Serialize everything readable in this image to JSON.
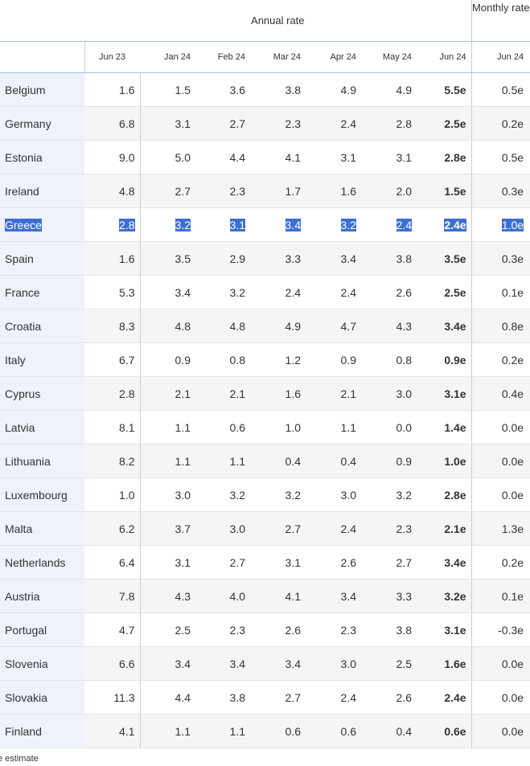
{
  "table": {
    "group_headers": [
      "Annual rate",
      "Monthly rate"
    ],
    "columns": [
      "Jun 23",
      "Jan 24",
      "Feb 24",
      "Mar 24",
      "Apr 24",
      "May 24",
      "Jun 24",
      "Jun 24"
    ],
    "rows": [
      [
        "Belgium",
        "1.6",
        "1.5",
        "3.6",
        "3.8",
        "4.9",
        "4.9",
        "5.5e",
        "0.5e"
      ],
      [
        "Germany",
        "6.8",
        "3.1",
        "2.7",
        "2.3",
        "2.4",
        "2.8",
        "2.5e",
        "0.2e"
      ],
      [
        "Estonia",
        "9.0",
        "5.0",
        "4.4",
        "4.1",
        "3.1",
        "3.1",
        "2.8e",
        "0.5e"
      ],
      [
        "Ireland",
        "4.8",
        "2.7",
        "2.3",
        "1.7",
        "1.6",
        "2.0",
        "1.5e",
        "0.3e"
      ],
      [
        "Greece",
        "2.8",
        "3.2",
        "3.1",
        "3.4",
        "3.2",
        "2.4",
        "2.4e",
        "1.0e"
      ],
      [
        "Spain",
        "1.6",
        "3.5",
        "2.9",
        "3.3",
        "3.4",
        "3.8",
        "3.5e",
        "0.3e"
      ],
      [
        "France",
        "5.3",
        "3.4",
        "3.2",
        "2.4",
        "2.4",
        "2.6",
        "2.5e",
        "0.1e"
      ],
      [
        "Croatia",
        "8.3",
        "4.8",
        "4.8",
        "4.9",
        "4.7",
        "4.3",
        "3.4e",
        "0.8e"
      ],
      [
        "Italy",
        "6.7",
        "0.9",
        "0.8",
        "1.2",
        "0.9",
        "0.8",
        "0.9e",
        "0.2e"
      ],
      [
        "Cyprus",
        "2.8",
        "2.1",
        "2.1",
        "1.6",
        "2.1",
        "3.0",
        "3.1e",
        "0.4e"
      ],
      [
        "Latvia",
        "8.1",
        "1.1",
        "0.6",
        "1.0",
        "1.1",
        "0.0",
        "1.4e",
        "0.0e"
      ],
      [
        "Lithuania",
        "8.2",
        "1.1",
        "1.1",
        "0.4",
        "0.4",
        "0.9",
        "1.0e",
        "0.0e"
      ],
      [
        "Luxembourg",
        "1.0",
        "3.0",
        "3.2",
        "3.2",
        "3.0",
        "3.2",
        "2.8e",
        "0.0e"
      ],
      [
        "Malta",
        "6.2",
        "3.7",
        "3.0",
        "2.7",
        "2.4",
        "2.3",
        "2.1e",
        "1.3e"
      ],
      [
        "Netherlands",
        "6.4",
        "3.1",
        "2.7",
        "3.1",
        "2.6",
        "2.7",
        "3.4e",
        "0.2e"
      ],
      [
        "Austria",
        "7.8",
        "4.3",
        "4.0",
        "4.1",
        "3.4",
        "3.3",
        "3.2e",
        "0.1e"
      ],
      [
        "Portugal",
        "4.7",
        "2.5",
        "2.3",
        "2.6",
        "2.3",
        "3.8",
        "3.1e",
        "-0.3e"
      ],
      [
        "Slovenia",
        "6.6",
        "3.4",
        "3.4",
        "3.4",
        "3.0",
        "2.5",
        "1.6e",
        "0.0e"
      ],
      [
        "Slovakia",
        "11.3",
        "4.4",
        "3.8",
        "2.7",
        "2.4",
        "2.6",
        "2.4e",
        "0.0e"
      ],
      [
        "Finland",
        "4.1",
        "1.1",
        "1.1",
        "0.6",
        "0.6",
        "0.4",
        "0.6e",
        "0.0e"
      ]
    ]
  },
  "footnote": "e estimate"
}
